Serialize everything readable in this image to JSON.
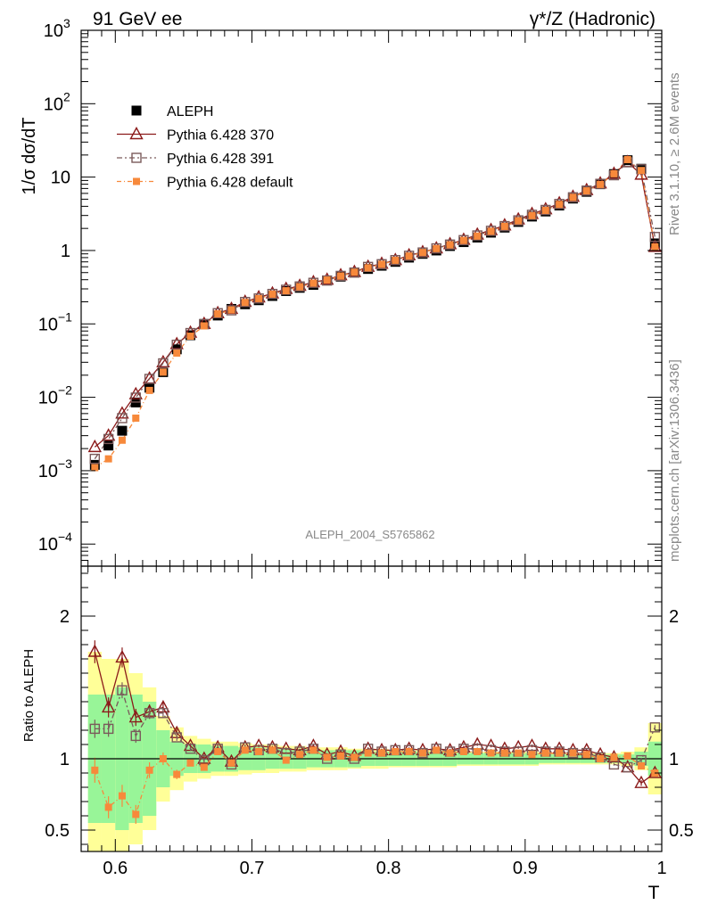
{
  "header": {
    "left": "91 GeV ee",
    "right": "γ*/Z (Hadronic)"
  },
  "side": {
    "rivet": "Rivet 3.1.10, ≥ 2.6M events",
    "mcplots": "mcplots.cern.ch [arXiv:1306.3436]"
  },
  "watermark": "ALEPH_2004_S5765862",
  "colors": {
    "data": "#000000",
    "p370": "#8B1A1A",
    "p391": "#7A5A5A",
    "pdef": "#F7893B",
    "band_inner": "#98F598",
    "band_outer": "#FFFF98"
  },
  "legend": [
    {
      "label": "ALEPH",
      "key": "data"
    },
    {
      "label": "Pythia 6.428 370",
      "key": "p370"
    },
    {
      "label": "Pythia 6.428 391",
      "key": "p391"
    },
    {
      "label": "Pythia 6.428 default",
      "key": "pdef"
    }
  ],
  "chart_data": {
    "type": "line",
    "main": {
      "ylabel": "1/σ  dσ/dT",
      "yscale": "log",
      "ylim": [
        5e-05,
        1000
      ],
      "yticks": [
        {
          "v": 0.0001,
          "b": "10",
          "e": "−4"
        },
        {
          "v": 0.001,
          "b": "10",
          "e": "−3"
        },
        {
          "v": 0.01,
          "b": "10",
          "e": "−2"
        },
        {
          "v": 0.1,
          "b": "10",
          "e": "−1"
        },
        {
          "v": 1,
          "b": "1",
          "e": ""
        },
        {
          "v": 10,
          "b": "10",
          "e": ""
        },
        {
          "v": 100,
          "b": "10",
          "e": "2"
        },
        {
          "v": 1000,
          "b": "10",
          "e": "3"
        }
      ]
    },
    "ratio": {
      "ylabel": "Ratio to ALEPH",
      "ylim": [
        0.35,
        2.35
      ],
      "yticks": [
        0.5,
        1,
        2
      ],
      "ytick_labels": [
        "0.5",
        "1",
        "2"
      ]
    },
    "xlabel": "T",
    "xlim": [
      0.575,
      1.0
    ],
    "xticks": [
      0.6,
      0.7,
      0.8,
      0.9,
      1.0
    ],
    "xtick_labels": [
      "0.6",
      "0.7",
      "0.8",
      "0.9",
      "1"
    ],
    "x": [
      0.585,
      0.595,
      0.605,
      0.615,
      0.625,
      0.635,
      0.645,
      0.655,
      0.665,
      0.675,
      0.685,
      0.695,
      0.705,
      0.715,
      0.725,
      0.735,
      0.745,
      0.755,
      0.765,
      0.775,
      0.785,
      0.795,
      0.805,
      0.815,
      0.825,
      0.835,
      0.845,
      0.855,
      0.865,
      0.875,
      0.885,
      0.895,
      0.905,
      0.915,
      0.925,
      0.935,
      0.945,
      0.955,
      0.965,
      0.975,
      0.985,
      0.995
    ],
    "band_inner_halfwidth": [
      0.45,
      0.45,
      0.5,
      0.45,
      0.4,
      0.2,
      0.12,
      0.1,
      0.1,
      0.09,
      0.09,
      0.08,
      0.08,
      0.07,
      0.07,
      0.07,
      0.06,
      0.06,
      0.06,
      0.06,
      0.05,
      0.05,
      0.05,
      0.05,
      0.05,
      0.05,
      0.05,
      0.04,
      0.04,
      0.04,
      0.04,
      0.04,
      0.04,
      0.03,
      0.03,
      0.03,
      0.03,
      0.03,
      0.03,
      0.03,
      0.05,
      0.12
    ],
    "band_outer_halfwidth": [
      0.75,
      0.7,
      0.7,
      0.6,
      0.5,
      0.3,
      0.22,
      0.16,
      0.14,
      0.12,
      0.12,
      0.11,
      0.1,
      0.1,
      0.09,
      0.09,
      0.08,
      0.08,
      0.08,
      0.07,
      0.07,
      0.07,
      0.06,
      0.06,
      0.06,
      0.06,
      0.06,
      0.05,
      0.05,
      0.05,
      0.05,
      0.05,
      0.05,
      0.04,
      0.04,
      0.04,
      0.04,
      0.04,
      0.04,
      0.05,
      0.08,
      0.25
    ],
    "series": [
      {
        "name": "ALEPH",
        "key": "data",
        "values": [
          0.0012,
          0.0022,
          0.0035,
          0.0085,
          0.0135,
          0.022,
          0.045,
          0.07,
          0.1,
          0.13,
          0.16,
          0.185,
          0.21,
          0.24,
          0.28,
          0.31,
          0.34,
          0.39,
          0.44,
          0.5,
          0.56,
          0.62,
          0.7,
          0.8,
          0.9,
          1.0,
          1.15,
          1.3,
          1.5,
          1.75,
          2.05,
          2.45,
          2.9,
          3.4,
          4.1,
          5.1,
          6.3,
          8.0,
          11.0,
          17.0,
          13.0,
          1.25
        ]
      },
      {
        "name": "Pythia 6.428 370",
        "key": "p370",
        "values": [
          0.0021,
          0.003,
          0.006,
          0.011,
          0.018,
          0.03,
          0.053,
          0.076,
          0.1,
          0.14,
          0.16,
          0.2,
          0.23,
          0.26,
          0.3,
          0.33,
          0.37,
          0.4,
          0.46,
          0.51,
          0.6,
          0.66,
          0.74,
          0.86,
          0.95,
          1.07,
          1.22,
          1.4,
          1.65,
          1.9,
          2.2,
          2.65,
          3.15,
          3.65,
          4.4,
          5.4,
          6.65,
          8.2,
          11.1,
          16.0,
          10.8,
          1.12
        ]
      },
      {
        "name": "Pythia 6.428 391",
        "key": "p391",
        "values": [
          0.00145,
          0.0027,
          0.0052,
          0.0099,
          0.0178,
          0.029,
          0.052,
          0.075,
          0.099,
          0.14,
          0.153,
          0.199,
          0.222,
          0.256,
          0.292,
          0.324,
          0.363,
          0.39,
          0.451,
          0.5,
          0.598,
          0.651,
          0.74,
          0.848,
          0.94,
          1.07,
          1.205,
          1.385,
          1.605,
          1.855,
          2.15,
          2.575,
          3.065,
          3.57,
          4.305,
          5.31,
          6.55,
          8.1,
          10.6,
          15.9,
          12.8,
          1.53
        ]
      },
      {
        "name": "Pythia 6.428 default",
        "key": "pdef",
        "values": [
          0.0011,
          0.00145,
          0.0026,
          0.0052,
          0.0124,
          0.022,
          0.04,
          0.068,
          0.094,
          0.137,
          0.155,
          0.196,
          0.221,
          0.254,
          0.283,
          0.32,
          0.359,
          0.396,
          0.449,
          0.506,
          0.58,
          0.648,
          0.735,
          0.84,
          0.94,
          1.06,
          1.195,
          1.37,
          1.57,
          1.825,
          2.13,
          2.54,
          2.99,
          3.52,
          4.25,
          5.3,
          6.5,
          7.95,
          11.1,
          17.3,
          12.3,
          1.12
        ]
      }
    ],
    "ratio_series": {
      "p370": [
        1.75,
        1.36,
        1.71,
        1.29,
        1.33,
        1.36,
        1.18,
        1.09,
        1.0,
        1.08,
        0.98,
        1.08,
        1.09,
        1.08,
        1.07,
        1.06,
        1.09,
        1.03,
        1.05,
        1.02,
        1.07,
        1.06,
        1.06,
        1.07,
        1.06,
        1.07,
        1.06,
        1.08,
        1.1,
        1.09,
        1.07,
        1.08,
        1.09,
        1.07,
        1.07,
        1.06,
        1.06,
        1.03,
        1.01,
        0.94,
        0.83,
        0.9
      ],
      "p391": [
        1.21,
        1.21,
        1.48,
        1.16,
        1.32,
        1.32,
        1.15,
        1.07,
        0.99,
        1.07,
        0.96,
        1.08,
        1.06,
        1.07,
        1.04,
        1.05,
        1.07,
        1.0,
        1.03,
        1.0,
        1.07,
        1.05,
        1.06,
        1.06,
        1.04,
        1.07,
        1.05,
        1.07,
        1.07,
        1.06,
        1.05,
        1.05,
        1.06,
        1.05,
        1.05,
        1.04,
        1.04,
        1.01,
        0.96,
        0.94,
        0.99,
        1.22
      ],
      "pdef": [
        0.92,
        0.66,
        0.74,
        0.61,
        0.92,
        1.0,
        0.89,
        0.97,
        0.94,
        1.05,
        0.97,
        1.06,
        1.05,
        1.06,
        0.99,
        1.03,
        1.06,
        1.01,
        1.02,
        1.01,
        1.04,
        1.04,
        1.05,
        1.05,
        1.04,
        1.06,
        1.04,
        1.05,
        1.05,
        1.04,
        1.04,
        1.04,
        1.03,
        1.04,
        1.04,
        1.04,
        1.03,
        1.0,
        1.01,
        1.02,
        0.95,
        0.9
      ]
    },
    "ratio_errors": [
      0.08,
      0.07,
      0.07,
      0.06,
      0.05,
      0.04,
      0.03,
      0.02,
      0.02,
      0.02,
      0.02,
      0.02,
      0.01,
      0.01,
      0.01,
      0.01,
      0.01,
      0.01,
      0.01,
      0.01,
      0.01,
      0.01,
      0.01,
      0.01,
      0.01,
      0.01,
      0.01,
      0.01,
      0.01,
      0.01,
      0.01,
      0.01,
      0.01,
      0.01,
      0.01,
      0.01,
      0.01,
      0.01,
      0.01,
      0.01,
      0.02,
      0.02
    ],
    "grid": false,
    "legend_position": "top-left"
  }
}
